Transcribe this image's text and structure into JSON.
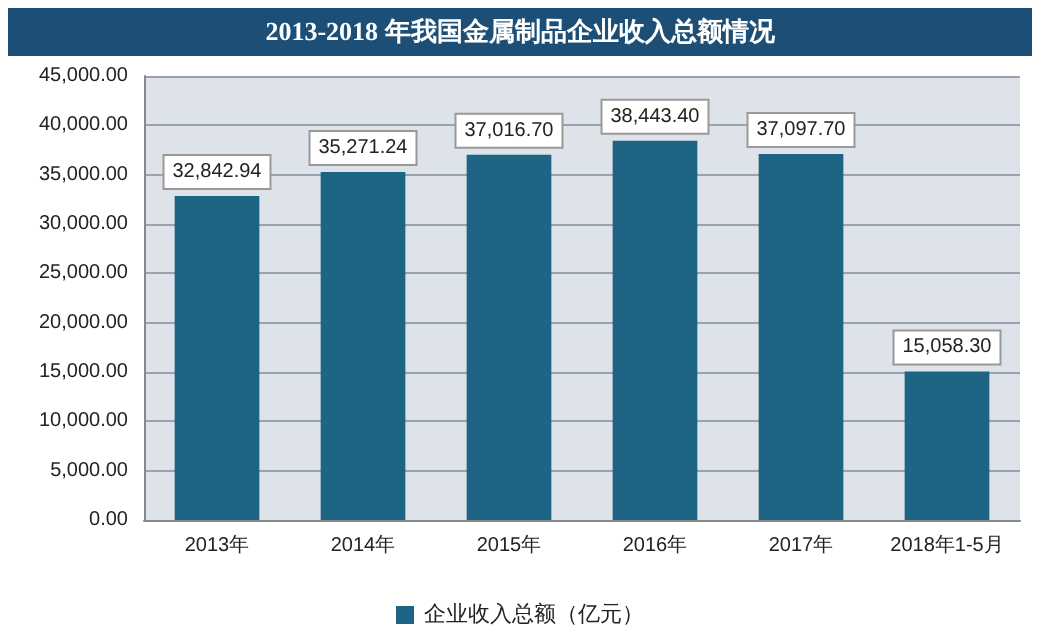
{
  "chart_data": {
    "type": "bar",
    "title": "2013-2018 年我国金属制品企业收入总额情况",
    "categories": [
      "2013年",
      "2014年",
      "2015年",
      "2016年",
      "2017年",
      "2018年1-5月"
    ],
    "series": [
      {
        "name": "企业收入总额（亿元）",
        "color": "#1e6485",
        "values": [
          32842.94,
          35271.24,
          37016.7,
          38443.4,
          37097.7,
          15058.3
        ],
        "value_labels": [
          "32,842.94",
          "35,271.24",
          "37,016.70",
          "38,443.40",
          "37,097.70",
          "15,058.30"
        ]
      }
    ],
    "ylim": [
      0,
      45000
    ],
    "yticks": [
      {
        "value": 0,
        "label": "0.00"
      },
      {
        "value": 5000,
        "label": "5,000.00"
      },
      {
        "value": 10000,
        "label": "10,000.00"
      },
      {
        "value": 15000,
        "label": "15,000.00"
      },
      {
        "value": 20000,
        "label": "20,000.00"
      },
      {
        "value": 25000,
        "label": "25,000.00"
      },
      {
        "value": 30000,
        "label": "30,000.00"
      },
      {
        "value": 35000,
        "label": "35,000.00"
      },
      {
        "value": 40000,
        "label": "40,000.00"
      },
      {
        "value": 45000,
        "label": "45,000.00"
      }
    ],
    "grid": "y",
    "legend": "bottom"
  }
}
